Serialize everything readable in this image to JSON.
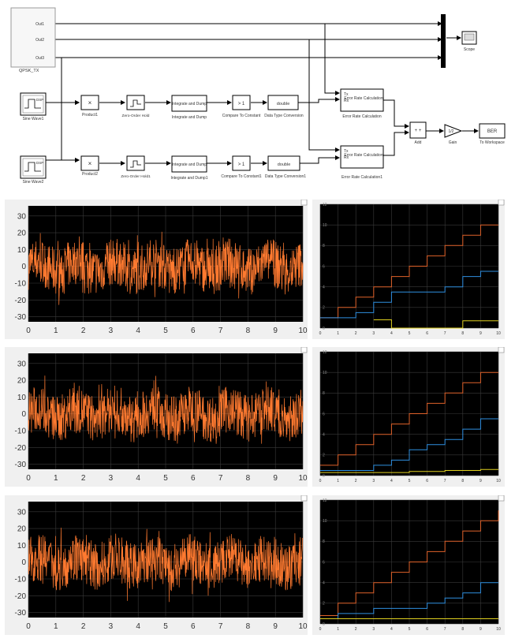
{
  "diagram": {
    "blocks": {
      "qpsk": {
        "label": "QPSK_TX",
        "ports": [
          "Out1",
          "Out2",
          "Out3"
        ]
      },
      "scope": {
        "label": "Scope"
      },
      "sine1": {
        "label": "Sine Wave1",
        "icon_text": "DSP"
      },
      "sine2": {
        "label": "Sine Wave2",
        "icon_text": "DSP"
      },
      "product1": {
        "label": "Product1",
        "icon_text": "×"
      },
      "product2": {
        "label": "Product2",
        "icon_text": "×"
      },
      "zoh1": {
        "label": "Zero-Order Hold"
      },
      "zoh2": {
        "label": "Zero-Order Hold1"
      },
      "int1": {
        "label": "Integrate and Dump",
        "icon_text": "Integrate and Dump"
      },
      "int2": {
        "label": "Integrate and Dump1",
        "icon_text": "Integrate and Dump"
      },
      "cmp1": {
        "label": "Compare To Constant",
        "icon_text": "> 1"
      },
      "cmp2": {
        "label": "Compare To Constant1",
        "icon_text": "> 1"
      },
      "dtc1": {
        "label": "Data Type Conversion",
        "icon_text": "double"
      },
      "dtc2": {
        "label": "Data Type Conversion1",
        "icon_text": "double"
      },
      "err1": {
        "label": "Error Rate Calculation",
        "icon_text": "Error Rate Calculation",
        "tx": "Tx",
        "rx": "Rx"
      },
      "err2": {
        "label": "Error Rate Calculation1",
        "icon_text": "Error Rate Calculation",
        "tx": "Tx",
        "rx": "Rx"
      },
      "add": {
        "label": "Add",
        "icon_text": "+ +"
      },
      "gain": {
        "label": "Gain",
        "icon_text": "1/2"
      },
      "ws": {
        "label": "To Workspace",
        "icon_text": "BER"
      }
    }
  },
  "chart_data": [
    {
      "type": "line",
      "panel": "noise-1",
      "xlim": [
        0,
        10
      ],
      "ylim": [
        -33,
        36
      ],
      "xticks": [
        "0",
        "1",
        "2",
        "3",
        "4",
        "5",
        "6",
        "7",
        "8",
        "9",
        "10"
      ],
      "yticks": [
        "30",
        "20",
        "10",
        "0",
        "-10",
        "-20",
        "-30"
      ],
      "yvals": [
        30,
        20,
        10,
        0,
        -10,
        -20,
        -30
      ],
      "series": [
        {
          "color": "#ff7a30"
        }
      ]
    },
    {
      "type": "line",
      "panel": "ber-1",
      "xlim": [
        0,
        10
      ],
      "ylim": [
        0,
        12
      ],
      "xticks": [
        "0",
        "1",
        "2",
        "3",
        "4",
        "5",
        "6",
        "7",
        "8",
        "9",
        "10"
      ],
      "yticks": [
        "0",
        "2",
        "4",
        "6",
        "8",
        "10",
        "12"
      ],
      "yvals": [
        0,
        2,
        4,
        6,
        8,
        10,
        12
      ],
      "series": [
        {
          "color": "#e0622a",
          "x": [
            0,
            1,
            2,
            3,
            4,
            5,
            6,
            7,
            8,
            9,
            10
          ],
          "y": [
            1,
            2,
            3,
            4,
            5,
            6,
            7,
            8,
            9,
            10,
            10
          ]
        },
        {
          "color": "#2f8fe0",
          "x": [
            0,
            1,
            2,
            3,
            4,
            5,
            6,
            7,
            8,
            9,
            10
          ],
          "y": [
            1,
            1,
            1.5,
            2.5,
            3.5,
            3.5,
            3.5,
            4,
            5,
            5.5,
            5.5
          ]
        },
        {
          "color": "#e0d020",
          "x": [
            3,
            4,
            4,
            8,
            8,
            10
          ],
          "y": [
            0.8,
            0.8,
            0,
            0,
            0.7,
            0.7
          ]
        }
      ]
    },
    {
      "type": "line",
      "panel": "noise-2",
      "xlim": [
        0,
        10
      ],
      "ylim": [
        -33,
        36
      ],
      "xticks": [
        "0",
        "1",
        "2",
        "3",
        "4",
        "5",
        "6",
        "7",
        "8",
        "9",
        "10"
      ],
      "yticks": [
        "30",
        "20",
        "10",
        "0",
        "-10",
        "-20",
        "-30"
      ],
      "yvals": [
        30,
        20,
        10,
        0,
        -10,
        -20,
        -30
      ],
      "series": [
        {
          "color": "#ff7a30"
        }
      ]
    },
    {
      "type": "line",
      "panel": "ber-2",
      "xlim": [
        0,
        10
      ],
      "ylim": [
        0,
        12
      ],
      "xticks": [
        "0",
        "1",
        "2",
        "3",
        "4",
        "5",
        "6",
        "7",
        "8",
        "9",
        "10"
      ],
      "yticks": [
        "0",
        "2",
        "4",
        "6",
        "8",
        "10",
        "12"
      ],
      "yvals": [
        0,
        2,
        4,
        6,
        8,
        10,
        12
      ],
      "series": [
        {
          "color": "#e0622a",
          "x": [
            0,
            1,
            2,
            3,
            4,
            5,
            6,
            7,
            8,
            9,
            10
          ],
          "y": [
            1,
            2,
            3,
            4,
            5,
            6,
            7,
            8,
            9,
            10,
            10
          ]
        },
        {
          "color": "#2f8fe0",
          "x": [
            0,
            1,
            2,
            3,
            4,
            5,
            6,
            7,
            8,
            9,
            10
          ],
          "y": [
            0.5,
            0.5,
            0.5,
            1,
            1.5,
            2.5,
            3,
            3.5,
            4.5,
            5.5,
            5.5
          ]
        },
        {
          "color": "#e0d020",
          "x": [
            0,
            1,
            2,
            3,
            4,
            5,
            6,
            7,
            8,
            9,
            10
          ],
          "y": [
            0.3,
            0.3,
            0.3,
            0.3,
            0.3,
            0.4,
            0.4,
            0.5,
            0.5,
            0.6,
            0.6
          ]
        }
      ]
    },
    {
      "type": "line",
      "panel": "noise-3",
      "xlim": [
        0,
        10
      ],
      "ylim": [
        -33,
        36
      ],
      "xticks": [
        "0",
        "1",
        "2",
        "3",
        "4",
        "5",
        "6",
        "7",
        "8",
        "9",
        "10"
      ],
      "yticks": [
        "30",
        "20",
        "10",
        "0",
        "-10",
        "-20",
        "-30"
      ],
      "yvals": [
        30,
        20,
        10,
        0,
        -10,
        -20,
        -30
      ],
      "series": [
        {
          "color": "#ff7a30"
        }
      ]
    },
    {
      "type": "line",
      "panel": "ber-3",
      "xlim": [
        0,
        10
      ],
      "ylim": [
        0,
        12
      ],
      "xticks": [
        "0",
        "1",
        "2",
        "3",
        "4",
        "5",
        "6",
        "7",
        "8",
        "9",
        "10"
      ],
      "yticks": [
        "0",
        "2",
        "4",
        "6",
        "8",
        "10",
        "12"
      ],
      "yvals": [
        0,
        2,
        4,
        6,
        8,
        10,
        12
      ],
      "series": [
        {
          "color": "#e0622a",
          "x": [
            0,
            1,
            2,
            3,
            4,
            5,
            6,
            7,
            8,
            9,
            10
          ],
          "y": [
            0.8,
            2,
            3,
            4,
            5,
            6,
            7,
            8,
            9,
            10,
            11
          ]
        },
        {
          "color": "#2f8fe0",
          "x": [
            0,
            1,
            2,
            3,
            4,
            5,
            6,
            7,
            8,
            9,
            10
          ],
          "y": [
            0.5,
            1,
            1,
            1.5,
            1.5,
            1.5,
            2,
            2.5,
            3,
            4,
            4
          ]
        },
        {
          "color": "#e0d020",
          "x": [
            0,
            1,
            2,
            3,
            4,
            5,
            6,
            7,
            8,
            9,
            10
          ],
          "y": [
            0.5,
            0.5,
            0.5,
            0.5,
            0.5,
            0.5,
            0.5,
            0.5,
            0.5,
            0.5,
            0.5
          ]
        }
      ]
    }
  ]
}
